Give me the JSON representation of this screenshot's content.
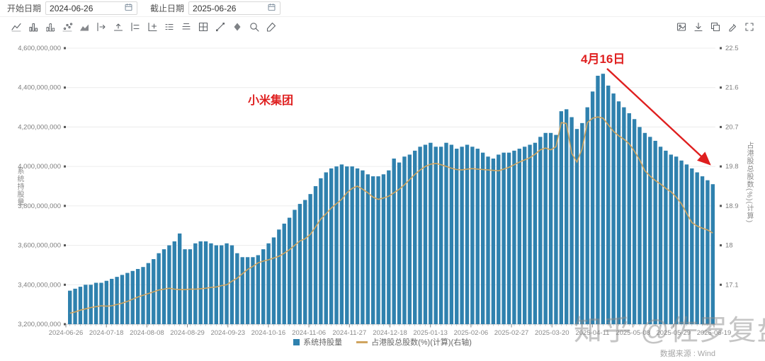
{
  "header": {
    "start_date_label": "开始日期",
    "start_date_value": "2024-06-26",
    "end_date_label": "截止日期",
    "end_date_value": "2025-06-26"
  },
  "toolbar": {
    "left_icons": [
      "line-chart-icon",
      "bar-chart-icon",
      "bar-outline-chart-icon",
      "scatter-chart-icon",
      "area-chart-icon",
      "shift-right-icon",
      "shift-up-icon",
      "align-left-icon",
      "add-axis-icon",
      "legend-left-icon",
      "legend-top-icon",
      "add-grid-icon",
      "trendline-icon",
      "fill-color-icon",
      "zoom-area-icon",
      "format-brush-icon"
    ],
    "right_icons": [
      "save-image-icon",
      "download-icon",
      "copy-icon",
      "annotate-icon",
      "fullscreen-icon"
    ]
  },
  "annotations": {
    "stock_label": "小米集团",
    "date_label": "4月16日",
    "annotation_color": "#df1f1f"
  },
  "watermark": "知乎 @佐罗复盘",
  "source": "数据来源 : Wind",
  "legend": [
    {
      "label": "系统持股量",
      "type": "bar",
      "color": "#2f81ae"
    },
    {
      "label": "占港股总股数(%)(计算)(右轴)",
      "type": "line",
      "color": "#cfa45f"
    }
  ],
  "chart_data": {
    "type": "bar",
    "combo": "bar+line",
    "x_range": [
      "2024-06-26",
      "2025-06-26"
    ],
    "x_tick_labels": [
      "2024-06-26",
      "2024-07-18",
      "2024-08-08",
      "2024-08-29",
      "2024-09-23",
      "2024-10-16",
      "2024-11-06",
      "2024-11-27",
      "2024-12-18",
      "2025-01-13",
      "2025-02-06",
      "2025-02-27",
      "2025-03-20",
      "2025-04-11",
      "2025-05-08",
      "2025-05-29",
      "2025-06-19"
    ],
    "left_axis": {
      "title": "系统持股量",
      "min": 3200000000,
      "max": 4600000000,
      "tick_step": 200000000,
      "tick_labels": [
        "4,600,000,000",
        "4,400,000,000",
        "4,200,000,000",
        "4,000,000,000",
        "3,800,000,000",
        "3,600,000,000",
        "3,400,000,000",
        "3,200,000,000"
      ]
    },
    "right_axis": {
      "title": "占港股总股数(%)(计算)",
      "min": 16.2,
      "max": 22.5,
      "tick_step": 0.9,
      "tick_labels": [
        "22.5",
        "21.6",
        "20.7",
        "19.8",
        "18.9",
        "18",
        "17.1"
      ]
    },
    "grid": true,
    "legend_position": "bottom",
    "series": [
      {
        "name": "系统持股量",
        "type": "bar",
        "axis": "left",
        "color": "#2f81ae",
        "values": [
          3370000000,
          3380000000,
          3390000000,
          3400000000,
          3400000000,
          3410000000,
          3410000000,
          3420000000,
          3430000000,
          3440000000,
          3450000000,
          3460000000,
          3470000000,
          3480000000,
          3490000000,
          3510000000,
          3530000000,
          3560000000,
          3580000000,
          3600000000,
          3620000000,
          3660000000,
          3580000000,
          3580000000,
          3610000000,
          3620000000,
          3620000000,
          3610000000,
          3600000000,
          3600000000,
          3610000000,
          3600000000,
          3560000000,
          3540000000,
          3540000000,
          3540000000,
          3550000000,
          3580000000,
          3610000000,
          3640000000,
          3680000000,
          3710000000,
          3740000000,
          3780000000,
          3810000000,
          3830000000,
          3860000000,
          3900000000,
          3940000000,
          3970000000,
          3990000000,
          4000000000,
          4010000000,
          4000000000,
          4000000000,
          3990000000,
          3980000000,
          3960000000,
          3950000000,
          3950000000,
          3960000000,
          3980000000,
          4040000000,
          4020000000,
          4050000000,
          4060000000,
          4080000000,
          4100000000,
          4110000000,
          4120000000,
          4100000000,
          4100000000,
          4120000000,
          4110000000,
          4090000000,
          4100000000,
          4110000000,
          4100000000,
          4090000000,
          4070000000,
          4050000000,
          4040000000,
          4060000000,
          4070000000,
          4070000000,
          4080000000,
          4090000000,
          4100000000,
          4110000000,
          4120000000,
          4150000000,
          4170000000,
          4170000000,
          4160000000,
          4280000000,
          4290000000,
          4250000000,
          4190000000,
          4220000000,
          4300000000,
          4380000000,
          4460000000,
          4470000000,
          4410000000,
          4370000000,
          4330000000,
          4300000000,
          4270000000,
          4240000000,
          4200000000,
          4170000000,
          4150000000,
          4130000000,
          4100000000,
          4080000000,
          4060000000,
          4050000000,
          4030000000,
          4010000000,
          3990000000,
          3970000000,
          3950000000,
          3930000000,
          3910000000
        ]
      },
      {
        "name": "占港股总股数(%)(计算)(右轴)",
        "type": "line",
        "axis": "right",
        "color": "#cfa45f",
        "values": [
          16.45,
          16.48,
          16.52,
          16.55,
          16.58,
          16.6,
          16.62,
          16.61,
          16.62,
          16.65,
          16.68,
          16.72,
          16.77,
          16.82,
          16.86,
          16.9,
          16.94,
          16.98,
          17.0,
          17.02,
          17.0,
          16.99,
          16.99,
          17.0,
          17.0,
          17.01,
          17.02,
          17.04,
          17.05,
          17.08,
          17.1,
          17.18,
          17.25,
          17.35,
          17.45,
          17.52,
          17.6,
          17.64,
          17.67,
          17.71,
          17.75,
          17.82,
          17.9,
          18.0,
          18.1,
          18.15,
          18.25,
          18.42,
          18.6,
          18.72,
          18.85,
          18.95,
          19.05,
          19.2,
          19.3,
          19.35,
          19.28,
          19.2,
          19.1,
          19.05,
          19.08,
          19.12,
          19.2,
          19.28,
          19.38,
          19.5,
          19.62,
          19.72,
          19.8,
          19.85,
          19.87,
          19.84,
          19.8,
          19.76,
          19.73,
          19.72,
          19.74,
          19.75,
          19.74,
          19.73,
          19.72,
          19.71,
          19.7,
          19.74,
          19.78,
          19.84,
          19.9,
          19.95,
          20.0,
          20.08,
          20.18,
          20.22,
          20.18,
          20.25,
          20.8,
          20.78,
          20.1,
          19.9,
          20.2,
          20.8,
          20.9,
          20.93,
          20.9,
          20.75,
          20.6,
          20.5,
          20.42,
          20.32,
          20.15,
          19.95,
          19.7,
          19.58,
          19.48,
          19.4,
          19.3,
          19.22,
          19.1,
          18.95,
          18.73,
          18.52,
          18.44,
          18.39,
          18.35,
          18.28
        ]
      }
    ]
  }
}
